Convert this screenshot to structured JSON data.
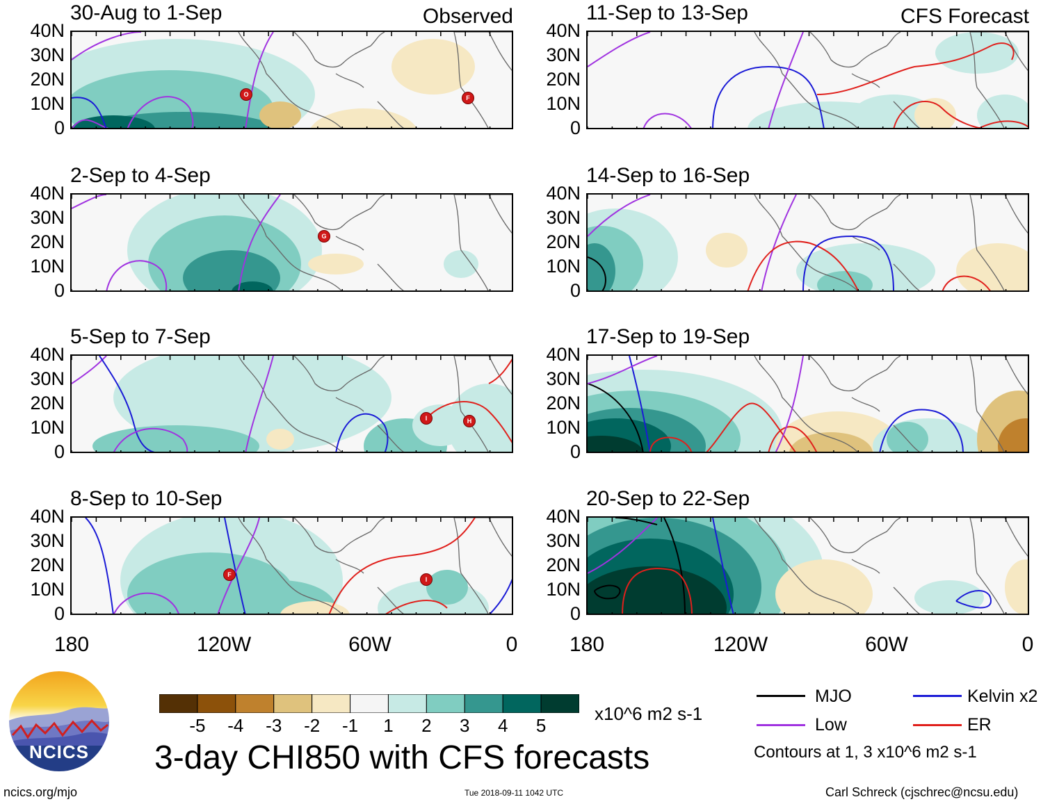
{
  "panels": [
    {
      "title": "30-Aug to 1-Sep",
      "corner": "Observed"
    },
    {
      "title": "2-Sep to 4-Sep",
      "corner": ""
    },
    {
      "title": "5-Sep to 7-Sep",
      "corner": ""
    },
    {
      "title": "8-Sep to 10-Sep",
      "corner": ""
    },
    {
      "title": "11-Sep to 13-Sep",
      "corner": "CFS Forecast"
    },
    {
      "title": "14-Sep to 16-Sep",
      "corner": ""
    },
    {
      "title": "17-Sep to 19-Sep",
      "corner": ""
    },
    {
      "title": "20-Sep to 22-Sep",
      "corner": ""
    }
  ],
  "axes": {
    "lat_labels": [
      "40N",
      "30N",
      "20N",
      "10N",
      "0"
    ],
    "lon_labels": [
      "180",
      "120W",
      "60W",
      "0"
    ]
  },
  "colorbar": {
    "tick_labels": [
      "-5",
      "-4",
      "-3",
      "-2",
      "-1",
      "1",
      "2",
      "3",
      "4",
      "5"
    ],
    "colors": [
      "#543005",
      "#8c510a",
      "#bf812d",
      "#dfc27d",
      "#f6e8c3",
      "#f5f5f5",
      "#c7eae5",
      "#80cdc1",
      "#35978f",
      "#01665e",
      "#003c30"
    ],
    "units": "x10^6 m2 s-1"
  },
  "title": "3-day CHI850 with CFS forecasts",
  "legend": {
    "items": [
      {
        "label": "MJO",
        "color": "#000000"
      },
      {
        "label": "Kelvin x2",
        "color": "#1a1ad6"
      },
      {
        "label": "Low",
        "color": "#a033e0"
      },
      {
        "label": "ER",
        "color": "#e0201c"
      }
    ],
    "note": "Contours at 1, 3 x10^6 m2 s-1"
  },
  "logo": {
    "text": "NCICS"
  },
  "footer": {
    "left": "ncics.org/mjo",
    "center": "Tue 2018-09-11 1042 UTC",
    "right": "Carl Schreck (cjschrec@ncsu.edu)"
  },
  "storms": [
    {
      "panel": 0,
      "label": "O"
    },
    {
      "panel": 0,
      "label": "F"
    },
    {
      "panel": 1,
      "label": "G"
    },
    {
      "panel": 2,
      "label": "I"
    },
    {
      "panel": 2,
      "label": "H"
    },
    {
      "panel": 3,
      "label": "F"
    },
    {
      "panel": 3,
      "label": "I"
    }
  ]
}
